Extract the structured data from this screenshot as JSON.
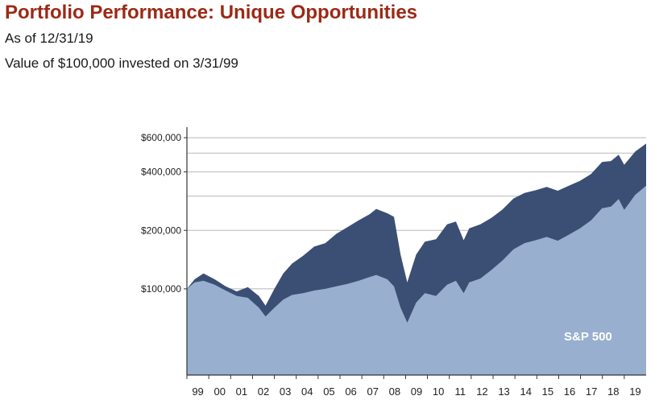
{
  "header": {
    "title": "Portfolio Performance: Unique Opportunities",
    "as_of": "As of 12/31/19",
    "description": "Value of $100,000 invested on 3/31/99"
  },
  "colors": {
    "title": "#9b2a16",
    "portfolio_fill": "#3b4f74",
    "sp500_fill": "#98afcf",
    "gridline": "#b8b8b8"
  },
  "chart_data": {
    "type": "area",
    "title": "",
    "xlabel": "",
    "ylabel": "",
    "y_scale": "log",
    "ylim": [
      36000,
      680000
    ],
    "y_ticks": [
      {
        "value": 100000,
        "label": "$100,000"
      },
      {
        "value": 200000,
        "label": "$200,000"
      },
      {
        "value": 400000,
        "label": "$400,000"
      },
      {
        "value": 600000,
        "label": "$600,000"
      }
    ],
    "y_gridlines": [
      100000,
      200000,
      300000,
      400000,
      500000,
      600000
    ],
    "x_ticks": [
      "99",
      "00",
      "01",
      "02",
      "03",
      "04",
      "05",
      "06",
      "07",
      "08",
      "09",
      "10",
      "11",
      "12",
      "13",
      "14",
      "15",
      "16",
      "17",
      "18",
      "19"
    ],
    "x": [
      "1999.25",
      "1999.6",
      "2000.0",
      "2000.5",
      "2001.0",
      "2001.5",
      "2002.0",
      "2002.5",
      "2002.8",
      "2003.2",
      "2003.6",
      "2004.0",
      "2004.5",
      "2005.0",
      "2005.5",
      "2006.0",
      "2006.5",
      "2007.0",
      "2007.5",
      "2007.8",
      "2008.3",
      "2008.6",
      "2008.9",
      "2009.2",
      "2009.6",
      "2010.0",
      "2010.5",
      "2011.0",
      "2011.4",
      "2011.75",
      "2012.0",
      "2012.5",
      "2013.0",
      "2013.5",
      "2014.0",
      "2014.5",
      "2015.0",
      "2015.5",
      "2016.0",
      "2016.5",
      "2017.0",
      "2017.5",
      "2018.0",
      "2018.4",
      "2018.75",
      "2019.0",
      "2019.5",
      "2019.99"
    ],
    "series": [
      {
        "name": "",
        "values": [
          100000,
          112000,
          120000,
          112000,
          103000,
          97000,
          102000,
          92000,
          82000,
          100000,
          120000,
          135000,
          148000,
          165000,
          172000,
          192000,
          208000,
          225000,
          242000,
          258000,
          245000,
          235000,
          150000,
          108000,
          150000,
          175000,
          180000,
          215000,
          222000,
          178000,
          205000,
          215000,
          232000,
          256000,
          292000,
          312000,
          322000,
          335000,
          320000,
          340000,
          360000,
          390000,
          450000,
          455000,
          490000,
          435000,
          510000,
          560000
        ]
      },
      {
        "name": "S&P 500",
        "values": [
          100000,
          108000,
          110000,
          105000,
          98000,
          92000,
          90000,
          80000,
          72000,
          80000,
          88000,
          93000,
          95000,
          98000,
          100000,
          103000,
          106000,
          110000,
          115000,
          118000,
          112000,
          103000,
          80000,
          67000,
          85000,
          95000,
          92000,
          105000,
          110000,
          95000,
          108000,
          113000,
          125000,
          140000,
          160000,
          172000,
          178000,
          185000,
          177000,
          190000,
          205000,
          225000,
          260000,
          265000,
          290000,
          255000,
          305000,
          340000
        ]
      }
    ],
    "annotations": [
      {
        "text": "S&P 500"
      }
    ],
    "grid": true,
    "legend": "none"
  }
}
